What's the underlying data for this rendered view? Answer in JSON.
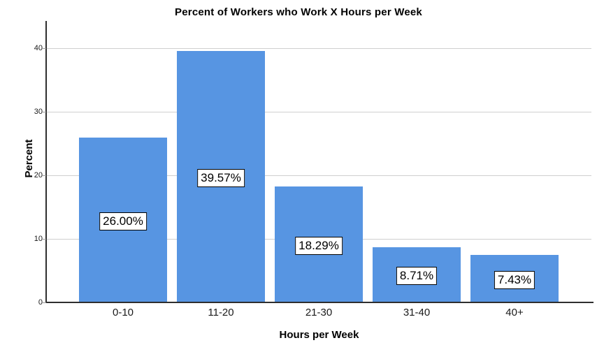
{
  "chart_data": {
    "type": "bar",
    "title": "Percent of Workers who Work X Hours per Week",
    "xlabel": "Hours per Week",
    "ylabel": "Percent",
    "categories": [
      "0-10",
      "11-20",
      "21-30",
      "31-40",
      "40+"
    ],
    "values": [
      26.0,
      39.57,
      18.29,
      8.71,
      7.43
    ],
    "bar_labels": [
      "26.00%",
      "39.57%",
      "18.29%",
      "8.71%",
      "7.43%"
    ],
    "yticks": [
      0,
      10,
      20,
      30,
      40
    ],
    "ylim": [
      0,
      44.3
    ],
    "grid": "horizontal-only",
    "legend": "none",
    "colors": {
      "bar": "#5795E2",
      "grid": "#CFCFCF",
      "axis": "#2E2E2E",
      "label_box_bg": "#FFFFFF",
      "label_box_border": "#000000",
      "text": "#000000",
      "background": "#FFFFFF"
    }
  }
}
